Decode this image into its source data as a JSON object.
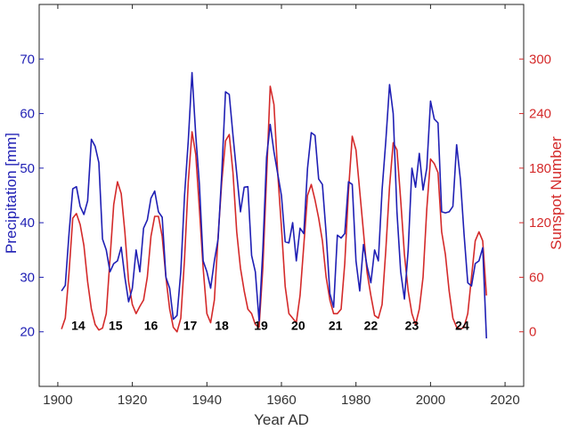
{
  "colors": {
    "left_axis": "#1f1fb4",
    "right_axis": "#d42a2a",
    "frame": "#222222",
    "grid": "#c8c8c8"
  },
  "chart_data": {
    "type": "line",
    "xlabel": "Year AD",
    "ylabel_left": "Precipitation [mm]",
    "ylabel_right": "Sunspot Number",
    "xlim": [
      1895,
      2025
    ],
    "ylim_left": [
      10,
      80
    ],
    "ylim_right": [
      -60,
      360
    ],
    "x_ticks": [
      1900,
      1920,
      1940,
      1960,
      1980,
      2000,
      2020
    ],
    "y_ticks_left": [
      20,
      30,
      40,
      50,
      60,
      70
    ],
    "y_ticks_right": [
      0,
      60,
      120,
      180,
      240,
      300
    ],
    "grid": false,
    "series": [
      {
        "axis": "left",
        "color": "#1f1fb4",
        "points": [
          [
            1901,
            27.5
          ],
          [
            1902,
            28.5
          ],
          [
            1903,
            38
          ],
          [
            1904,
            46.2
          ],
          [
            1905,
            46.6
          ],
          [
            1906,
            43
          ],
          [
            1907,
            41.5
          ],
          [
            1908,
            44
          ],
          [
            1909,
            55.3
          ],
          [
            1910,
            54
          ],
          [
            1911,
            51
          ],
          [
            1912,
            37
          ],
          [
            1913,
            35
          ],
          [
            1914,
            31
          ],
          [
            1915,
            32.5
          ],
          [
            1916,
            33
          ],
          [
            1917,
            35.5
          ],
          [
            1918,
            30
          ],
          [
            1919,
            25.5
          ],
          [
            1920,
            28
          ],
          [
            1921,
            35
          ],
          [
            1922,
            31
          ],
          [
            1923,
            39
          ],
          [
            1924,
            40.5
          ],
          [
            1925,
            44.5
          ],
          [
            1926,
            45.8
          ],
          [
            1927,
            42
          ],
          [
            1928,
            41
          ],
          [
            1929,
            30
          ],
          [
            1930,
            28
          ],
          [
            1931,
            22.3
          ],
          [
            1932,
            23
          ],
          [
            1933,
            31
          ],
          [
            1934,
            45
          ],
          [
            1935,
            55
          ],
          [
            1936,
            67.5
          ],
          [
            1937,
            56
          ],
          [
            1938,
            47
          ],
          [
            1939,
            33
          ],
          [
            1940,
            31
          ],
          [
            1941,
            28
          ],
          [
            1942,
            33
          ],
          [
            1943,
            37
          ],
          [
            1944,
            49
          ],
          [
            1945,
            64
          ],
          [
            1946,
            63.5
          ],
          [
            1947,
            56
          ],
          [
            1948,
            49
          ],
          [
            1949,
            42
          ],
          [
            1950,
            46.5
          ],
          [
            1951,
            46.6
          ],
          [
            1952,
            34
          ],
          [
            1953,
            31
          ],
          [
            1954,
            22
          ],
          [
            1955,
            35
          ],
          [
            1956,
            52
          ],
          [
            1957,
            58
          ],
          [
            1958,
            53
          ],
          [
            1959,
            49
          ],
          [
            1960,
            45
          ],
          [
            1961,
            36.5
          ],
          [
            1962,
            36.3
          ],
          [
            1963,
            40
          ],
          [
            1964,
            33
          ],
          [
            1965,
            39
          ],
          [
            1966,
            38
          ],
          [
            1967,
            50
          ],
          [
            1968,
            56.5
          ],
          [
            1969,
            56
          ],
          [
            1970,
            48
          ],
          [
            1971,
            47
          ],
          [
            1972,
            38
          ],
          [
            1973,
            27
          ],
          [
            1974,
            24.5
          ],
          [
            1975,
            37.7
          ],
          [
            1976,
            37.2
          ],
          [
            1977,
            38
          ],
          [
            1978,
            47.5
          ],
          [
            1979,
            47
          ],
          [
            1980,
            33
          ],
          [
            1981,
            27.5
          ],
          [
            1982,
            36
          ],
          [
            1983,
            32
          ],
          [
            1984,
            29
          ],
          [
            1985,
            35
          ],
          [
            1986,
            33
          ],
          [
            1987,
            46
          ],
          [
            1988,
            55
          ],
          [
            1989,
            65.3
          ],
          [
            1990,
            60
          ],
          [
            1991,
            42
          ],
          [
            1992,
            31
          ],
          [
            1993,
            26
          ],
          [
            1994,
            35
          ],
          [
            1995,
            50
          ],
          [
            1996,
            46.5
          ],
          [
            1997,
            52.7
          ],
          [
            1998,
            46
          ],
          [
            1999,
            50
          ],
          [
            2000,
            62.3
          ],
          [
            2001,
            59
          ],
          [
            2002,
            58.3
          ],
          [
            2003,
            42
          ],
          [
            2004,
            41.8
          ],
          [
            2005,
            42
          ],
          [
            2006,
            43
          ],
          [
            2007,
            54.3
          ],
          [
            2008,
            48
          ],
          [
            2009,
            38
          ],
          [
            2010,
            29
          ],
          [
            2011,
            28.4
          ],
          [
            2012,
            32.5
          ],
          [
            2013,
            33
          ],
          [
            2014,
            35.4
          ],
          [
            2015,
            18.8
          ]
        ]
      },
      {
        "axis": "right",
        "color": "#d42a2a",
        "points": [
          [
            1901,
            3
          ],
          [
            1902,
            15
          ],
          [
            1903,
            65
          ],
          [
            1904,
            125
          ],
          [
            1905,
            130
          ],
          [
            1906,
            118
          ],
          [
            1907,
            95
          ],
          [
            1908,
            55
          ],
          [
            1909,
            25
          ],
          [
            1910,
            8
          ],
          [
            1911,
            2
          ],
          [
            1912,
            4
          ],
          [
            1913,
            20
          ],
          [
            1914,
            80
          ],
          [
            1915,
            140
          ],
          [
            1916,
            165
          ],
          [
            1917,
            152
          ],
          [
            1918,
            110
          ],
          [
            1919,
            55
          ],
          [
            1920,
            30
          ],
          [
            1921,
            20
          ],
          [
            1922,
            28
          ],
          [
            1923,
            35
          ],
          [
            1924,
            60
          ],
          [
            1925,
            105
          ],
          [
            1926,
            127
          ],
          [
            1927,
            127
          ],
          [
            1928,
            105
          ],
          [
            1929,
            60
          ],
          [
            1930,
            25
          ],
          [
            1931,
            5
          ],
          [
            1932,
            0
          ],
          [
            1933,
            15
          ],
          [
            1934,
            80
          ],
          [
            1935,
            165
          ],
          [
            1936,
            220
          ],
          [
            1937,
            195
          ],
          [
            1938,
            135
          ],
          [
            1939,
            70
          ],
          [
            1940,
            20
          ],
          [
            1941,
            10
          ],
          [
            1942,
            35
          ],
          [
            1943,
            105
          ],
          [
            1944,
            165
          ],
          [
            1945,
            210
          ],
          [
            1946,
            217
          ],
          [
            1947,
            175
          ],
          [
            1948,
            110
          ],
          [
            1949,
            70
          ],
          [
            1950,
            45
          ],
          [
            1951,
            25
          ],
          [
            1952,
            20
          ],
          [
            1953,
            8
          ],
          [
            1954,
            5
          ],
          [
            1955,
            70
          ],
          [
            1956,
            170
          ],
          [
            1957,
            270
          ],
          [
            1958,
            250
          ],
          [
            1959,
            175
          ],
          [
            1960,
            115
          ],
          [
            1961,
            50
          ],
          [
            1962,
            20
          ],
          [
            1963,
            15
          ],
          [
            1964,
            10
          ],
          [
            1965,
            40
          ],
          [
            1966,
            95
          ],
          [
            1967,
            150
          ],
          [
            1968,
            162
          ],
          [
            1969,
            145
          ],
          [
            1970,
            125
          ],
          [
            1971,
            100
          ],
          [
            1972,
            60
          ],
          [
            1973,
            35
          ],
          [
            1974,
            20
          ],
          [
            1975,
            20
          ],
          [
            1976,
            25
          ],
          [
            1977,
            75
          ],
          [
            1978,
            155
          ],
          [
            1979,
            215
          ],
          [
            1980,
            200
          ],
          [
            1981,
            155
          ],
          [
            1982,
            110
          ],
          [
            1983,
            65
          ],
          [
            1984,
            40
          ],
          [
            1985,
            18
          ],
          [
            1986,
            15
          ],
          [
            1987,
            30
          ],
          [
            1988,
            90
          ],
          [
            1989,
            160
          ],
          [
            1990,
            208
          ],
          [
            1991,
            200
          ],
          [
            1992,
            145
          ],
          [
            1993,
            85
          ],
          [
            1994,
            45
          ],
          [
            1995,
            20
          ],
          [
            1996,
            8
          ],
          [
            1997,
            25
          ],
          [
            1998,
            60
          ],
          [
            1999,
            135
          ],
          [
            2000,
            190
          ],
          [
            2001,
            185
          ],
          [
            2002,
            175
          ],
          [
            2003,
            110
          ],
          [
            2004,
            85
          ],
          [
            2005,
            45
          ],
          [
            2006,
            15
          ],
          [
            2007,
            5
          ],
          [
            2008,
            3
          ],
          [
            2009,
            5
          ],
          [
            2010,
            20
          ],
          [
            2011,
            60
          ],
          [
            2012,
            100
          ],
          [
            2013,
            110
          ],
          [
            2014,
            100
          ],
          [
            2015,
            40
          ]
        ]
      }
    ],
    "annotations": [
      {
        "text": "14",
        "x": 1905.5,
        "y": 21.2
      },
      {
        "text": "15",
        "x": 1915.5,
        "y": 21.2
      },
      {
        "text": "16",
        "x": 1925,
        "y": 21.2
      },
      {
        "text": "17",
        "x": 1935.5,
        "y": 21.2
      },
      {
        "text": "18",
        "x": 1944,
        "y": 21.2
      },
      {
        "text": "19",
        "x": 1954.5,
        "y": 21.2
      },
      {
        "text": "20",
        "x": 1964.5,
        "y": 21.2
      },
      {
        "text": "21",
        "x": 1974.5,
        "y": 21.2
      },
      {
        "text": "22",
        "x": 1984,
        "y": 21.2
      },
      {
        "text": "23",
        "x": 1995,
        "y": 21.2
      },
      {
        "text": "24",
        "x": 2008.5,
        "y": 21.2
      }
    ]
  }
}
